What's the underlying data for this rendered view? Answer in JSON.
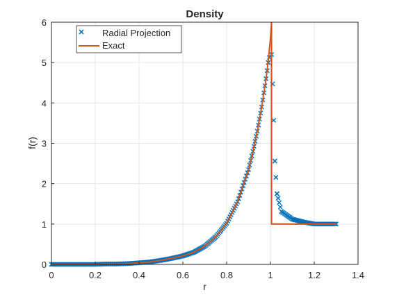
{
  "chart_data": {
    "type": "line",
    "title": "Density",
    "xlabel": "r",
    "ylabel": "f(r)",
    "xlim": [
      0,
      1.4
    ],
    "ylim": [
      0,
      6
    ],
    "xticks": [
      "0",
      "0.2",
      "0.4",
      "0.6",
      "0.8",
      "1",
      "1.2",
      "1.4"
    ],
    "yticks": [
      "0",
      "1",
      "2",
      "3",
      "4",
      "5",
      "6"
    ],
    "grid": true,
    "legend_position": "top-left",
    "colors": {
      "projection": "#0072BD",
      "exact": "#D95319"
    },
    "series": [
      {
        "name": "Radial Projection",
        "marker": "x",
        "x": [
          0,
          0.05,
          0.1,
          0.15,
          0.2,
          0.25,
          0.3,
          0.35,
          0.4,
          0.45,
          0.5,
          0.55,
          0.6,
          0.65,
          0.7,
          0.75,
          0.8,
          0.85,
          0.9,
          0.92,
          0.94,
          0.96,
          0.98,
          0.99,
          1.0,
          1.005,
          1.01,
          1.015,
          1.02,
          1.03,
          1.05,
          1.1,
          1.15,
          1.2,
          1.25,
          1.3
        ],
        "y": [
          0,
          0,
          0,
          0,
          0,
          0.01,
          0.01,
          0.02,
          0.04,
          0.06,
          0.1,
          0.15,
          0.21,
          0.3,
          0.45,
          0.68,
          1.02,
          1.55,
          2.35,
          2.8,
          3.3,
          3.9,
          4.6,
          5.0,
          5.25,
          5.2,
          4.47,
          3.57,
          2.56,
          1.75,
          1.31,
          1.12,
          1.05,
          1.0,
          1.0,
          1.0
        ]
      },
      {
        "name": "Exact",
        "marker": "line",
        "x": [
          0,
          0.05,
          0.1,
          0.15,
          0.2,
          0.25,
          0.3,
          0.35,
          0.4,
          0.45,
          0.5,
          0.55,
          0.6,
          0.65,
          0.7,
          0.75,
          0.8,
          0.85,
          0.9,
          0.92,
          0.94,
          0.96,
          0.98,
          0.99,
          1.0,
          1.005,
          1.005,
          1.3
        ],
        "y": [
          0,
          0,
          0,
          0,
          0,
          0.01,
          0.01,
          0.02,
          0.04,
          0.06,
          0.1,
          0.15,
          0.21,
          0.3,
          0.45,
          0.68,
          1.02,
          1.55,
          2.35,
          2.8,
          3.3,
          3.9,
          4.6,
          5.05,
          5.6,
          6.0,
          1.0,
          1.0
        ]
      }
    ]
  }
}
